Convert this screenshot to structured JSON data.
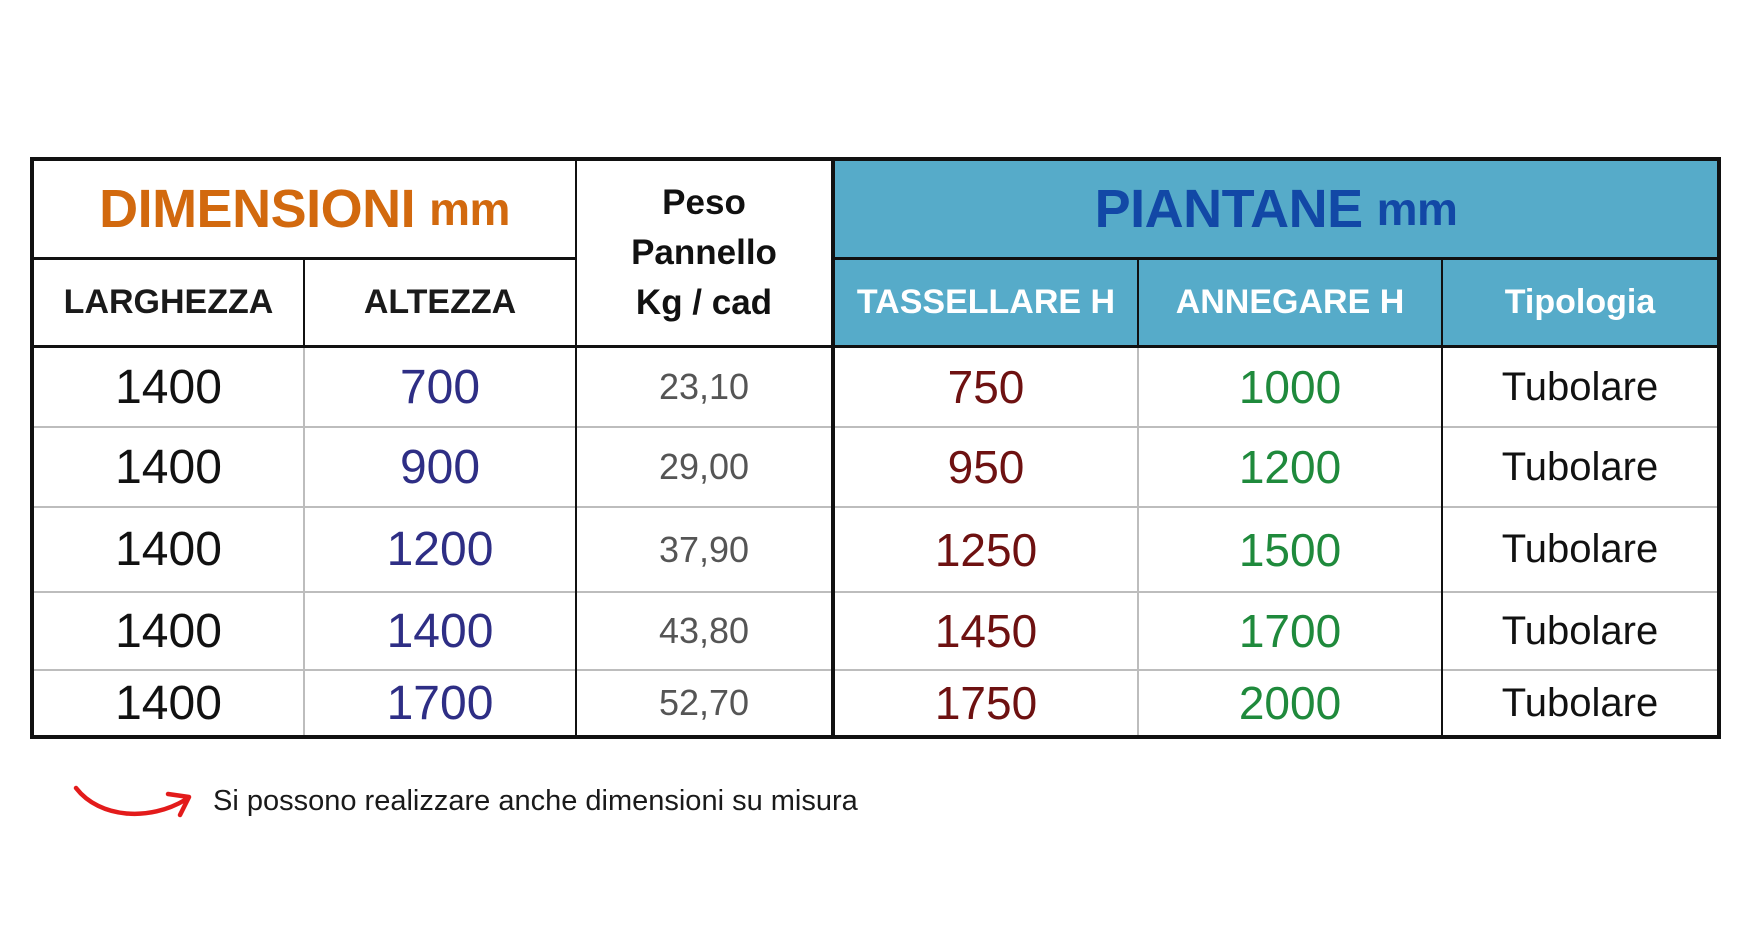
{
  "headers": {
    "dimensioni": "DIMENSIONI",
    "dimensioni_unit": "mm",
    "peso_line1": "Peso",
    "peso_line2": "Pannello",
    "peso_line3": "Kg / cad",
    "piantane": "PIANTANE",
    "piantane_unit": "mm",
    "larghezza": "LARGHEZZA",
    "altezza": "ALTEZZA",
    "tassellare": "TASSELLARE H",
    "annegare": "ANNEGARE H",
    "tipologia": "Tipologia"
  },
  "rows": [
    {
      "larghezza": "1400",
      "altezza": "700",
      "peso": "23,10",
      "tassellare": "750",
      "annegare": "1000",
      "tipologia": "Tubolare"
    },
    {
      "larghezza": "1400",
      "altezza": "900",
      "peso": "29,00",
      "tassellare": "950",
      "annegare": "1200",
      "tipologia": "Tubolare"
    },
    {
      "larghezza": "1400",
      "altezza": "1200",
      "peso": "37,90",
      "tassellare": "1250",
      "annegare": "1500",
      "tipologia": "Tubolare"
    },
    {
      "larghezza": "1400",
      "altezza": "1400",
      "peso": "43,80",
      "tassellare": "1450",
      "annegare": "1700",
      "tipologia": "Tubolare"
    },
    {
      "larghezza": "1400",
      "altezza": "1700",
      "peso": "52,70",
      "tassellare": "1750",
      "annegare": "2000",
      "tipologia": "Tubolare"
    }
  ],
  "note": "Si possono realizzare anche dimensioni su misura",
  "icons": {
    "note_arrow": "curved-arrow-icon"
  },
  "colors": {
    "dimensioni_header": "#d2690e",
    "piantane_header": "#1248a6",
    "piantane_background": "#56abc9",
    "altezza_values": "#2e2e85",
    "tassellare_values": "#6e1111",
    "annegare_values": "#1f8a3c",
    "arrow": "#e31b1b"
  }
}
